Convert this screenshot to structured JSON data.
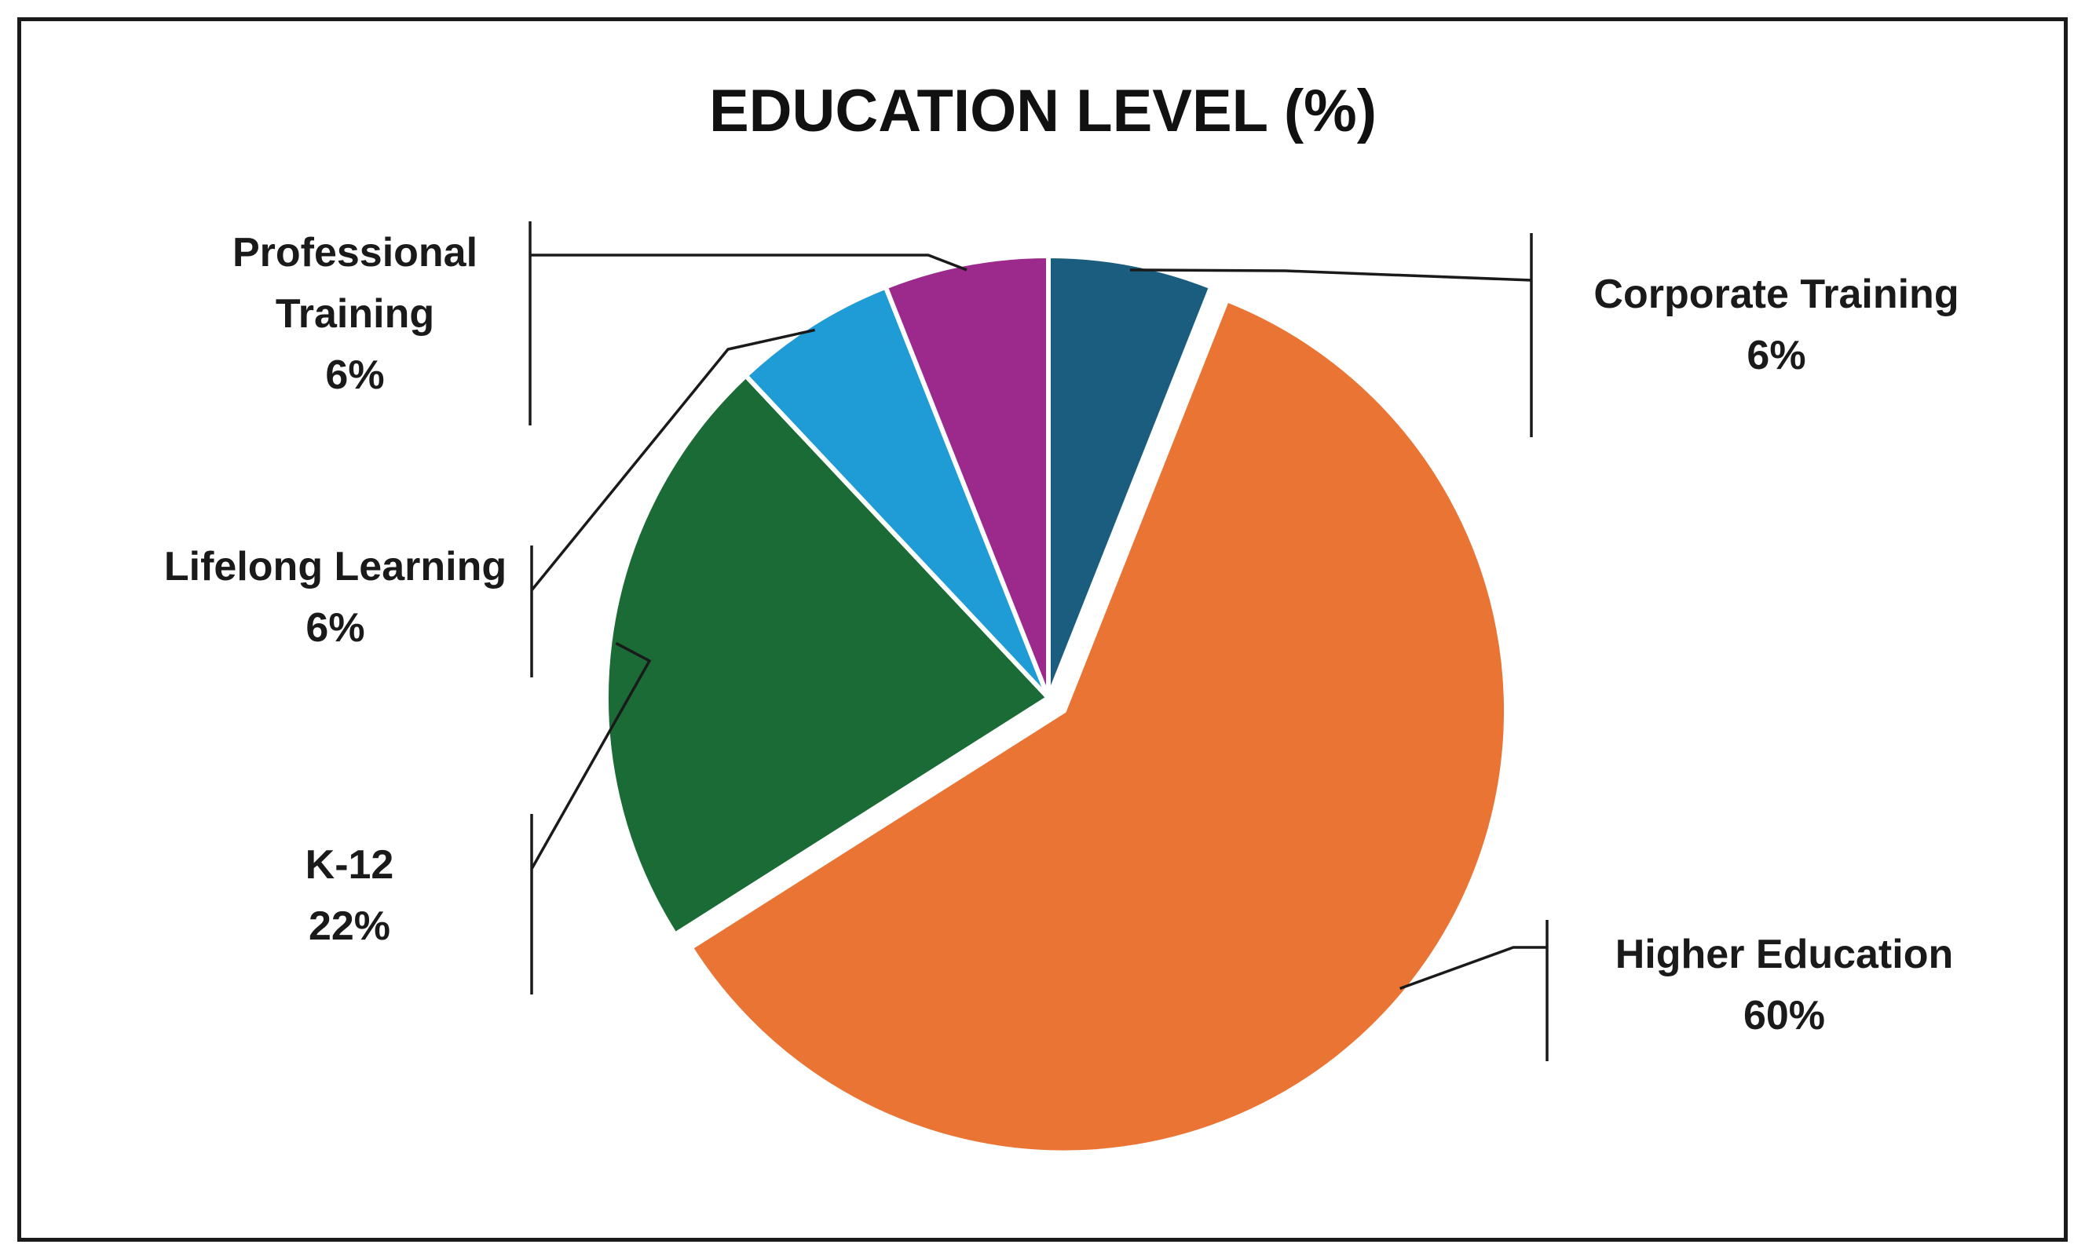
{
  "chart_data": {
    "type": "pie",
    "title": "EDUCATION LEVEL (%)",
    "value_suffix": "%",
    "colors": {
      "Corporate Training": "#1b5d7e",
      "Higher Education": "#ea7434",
      "K-12": "#1b6b37",
      "Lifelong Learning": "#1f9bd5",
      "Professional Training": "#9b2a8c"
    },
    "slices": [
      {
        "label": "Corporate Training",
        "value": 6,
        "display": "6%"
      },
      {
        "label": "Higher Education",
        "value": 60,
        "display": "60%",
        "exploded": true
      },
      {
        "label": "K-12",
        "value": 22,
        "display": "22%"
      },
      {
        "label": "Lifelong Learning",
        "value": 6,
        "display": "6%"
      },
      {
        "label": "Professional Training",
        "value": 6,
        "display": "6%"
      }
    ],
    "start_angle": "12 o'clock",
    "direction": "clockwise",
    "legend": "none",
    "data_labels": "outside with leader lines"
  }
}
